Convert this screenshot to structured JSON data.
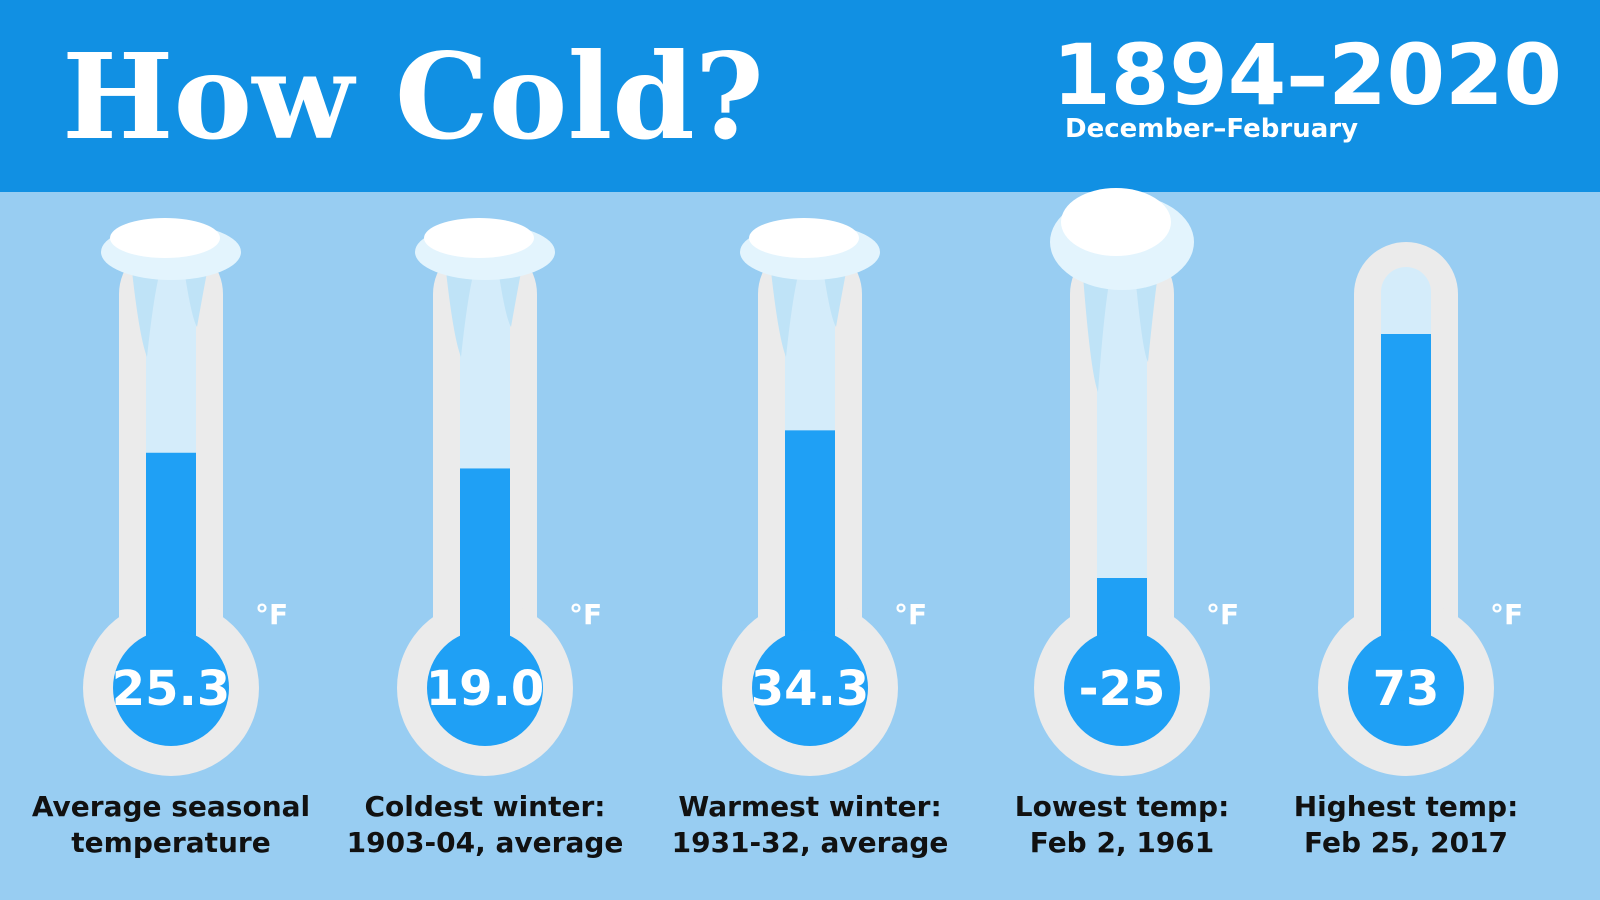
{
  "chart_data": {
    "type": "thermometer",
    "title": "How Cold?",
    "period": "1894–2020",
    "subtitle": "December–February",
    "unit": "°F",
    "categories": [
      "Average seasonal\ntemperature",
      "Coldest winter:\n1903-04, average",
      "Warmest winter:\n1931-32, average",
      "Lowest temp:\nFeb 2, 1961",
      "Highest temp:\nFeb 25, 2017"
    ],
    "values": [
      25.3,
      19.0,
      34.3,
      -25,
      73
    ],
    "value_labels": [
      "25.3",
      "19.0",
      "34.3",
      "-25",
      "73"
    ],
    "color": "#1fa0f5"
  }
}
